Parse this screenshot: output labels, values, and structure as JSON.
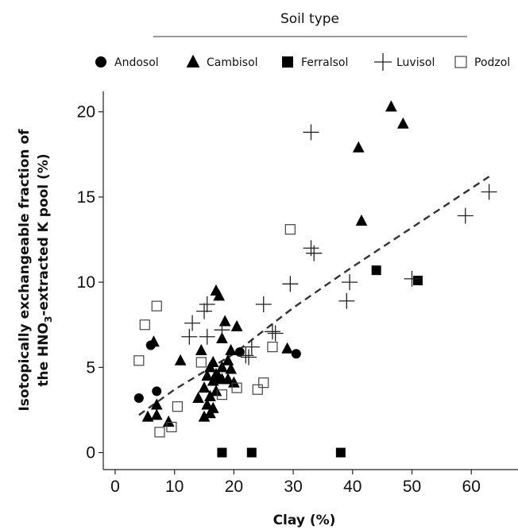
{
  "chart_data": {
    "type": "scatter",
    "title": "",
    "xlabel": "Clay (%)",
    "ylabel_line1": "Isotopically exchangeable fraction of",
    "ylabel_line2_pre": "the HNO",
    "ylabel_line2_sub": "3",
    "ylabel_line2_post": "-extracted K pool (%)",
    "xlim": [
      -2,
      68
    ],
    "ylim": [
      -1,
      21.2
    ],
    "xticks": [
      0,
      10,
      20,
      30,
      40,
      50,
      60
    ],
    "yticks": [
      0,
      5,
      10,
      15,
      20
    ],
    "grid": false,
    "legend": {
      "title": "Soil type",
      "placement": "top",
      "entries": [
        "Andosol",
        "Cambisol",
        "Ferralsol",
        "Luvisol",
        "Podzol"
      ]
    },
    "series": [
      {
        "name": "Andosol",
        "marker": "circle",
        "points": [
          [
            4,
            3.2
          ],
          [
            6,
            6.3
          ],
          [
            7,
            3.6
          ],
          [
            21,
            5.9
          ],
          [
            30.5,
            5.8
          ]
        ]
      },
      {
        "name": "Cambisol",
        "marker": "triangle",
        "points": [
          [
            5.5,
            2.1
          ],
          [
            6.5,
            6.5
          ],
          [
            7,
            2.8
          ],
          [
            7,
            2.2
          ],
          [
            9,
            1.8
          ],
          [
            11,
            5.4
          ],
          [
            14,
            3.2
          ],
          [
            14.5,
            6.0
          ],
          [
            15,
            2.1
          ],
          [
            15,
            3.8
          ],
          [
            15.5,
            4.5
          ],
          [
            15.5,
            2.8
          ],
          [
            16,
            3.3
          ],
          [
            16,
            5.0
          ],
          [
            16,
            2.3
          ],
          [
            16.5,
            5.3
          ],
          [
            16.5,
            4.2
          ],
          [
            16.5,
            2.6
          ],
          [
            17,
            4.6
          ],
          [
            17,
            3.6
          ],
          [
            17,
            9.5
          ],
          [
            17.5,
            4.4
          ],
          [
            17.5,
            9.2
          ],
          [
            18,
            5.0
          ],
          [
            18,
            6.7
          ],
          [
            18,
            4.3
          ],
          [
            18.5,
            7.7
          ],
          [
            19,
            5.4
          ],
          [
            19,
            4.3
          ],
          [
            19.5,
            6.0
          ],
          [
            19.5,
            4.9
          ],
          [
            20,
            4.1
          ],
          [
            20.5,
            7.4
          ],
          [
            29,
            6.1
          ],
          [
            41,
            17.9
          ],
          [
            41.5,
            13.6
          ],
          [
            46.5,
            20.3
          ],
          [
            48.5,
            19.3
          ]
        ]
      },
      {
        "name": "Ferralsol",
        "marker": "square",
        "points": [
          [
            18,
            0
          ],
          [
            23,
            0
          ],
          [
            38,
            0
          ],
          [
            44,
            10.7
          ],
          [
            51,
            10.1
          ]
        ]
      },
      {
        "name": "Luvisol",
        "marker": "cross",
        "points": [
          [
            12.5,
            6.8
          ],
          [
            13,
            7.6
          ],
          [
            15,
            8.3
          ],
          [
            15.5,
            8.7
          ],
          [
            15.5,
            6.8
          ],
          [
            18,
            7.2
          ],
          [
            22,
            5.7
          ],
          [
            22.5,
            5.6
          ],
          [
            23,
            6.2
          ],
          [
            25,
            8.7
          ],
          [
            26.5,
            7.1
          ],
          [
            27,
            7.0
          ],
          [
            29.5,
            9.9
          ],
          [
            33,
            18.8
          ],
          [
            33,
            12.0
          ],
          [
            33.5,
            11.7
          ],
          [
            39,
            8.9
          ],
          [
            39.5,
            10.0
          ],
          [
            50,
            10.2
          ],
          [
            59,
            13.9
          ],
          [
            63,
            15.3
          ]
        ]
      },
      {
        "name": "Podzol",
        "marker": "open-square",
        "points": [
          [
            4,
            5.4
          ],
          [
            5,
            7.5
          ],
          [
            7,
            8.6
          ],
          [
            7.5,
            1.2
          ],
          [
            9.5,
            1.5
          ],
          [
            10.5,
            2.7
          ],
          [
            14.5,
            5.3
          ],
          [
            18,
            3.4
          ],
          [
            20.5,
            3.8
          ],
          [
            24,
            3.7
          ],
          [
            25,
            4.1
          ],
          [
            26.5,
            6.2
          ],
          [
            29.5,
            13.1
          ]
        ]
      }
    ],
    "trendline": {
      "style": "dashed",
      "points": [
        [
          4,
          2.2
        ],
        [
          10,
          3.7
        ],
        [
          20,
          5.8
        ],
        [
          30,
          8.5
        ],
        [
          40,
          10.9
        ],
        [
          63,
          16.2
        ]
      ]
    }
  }
}
